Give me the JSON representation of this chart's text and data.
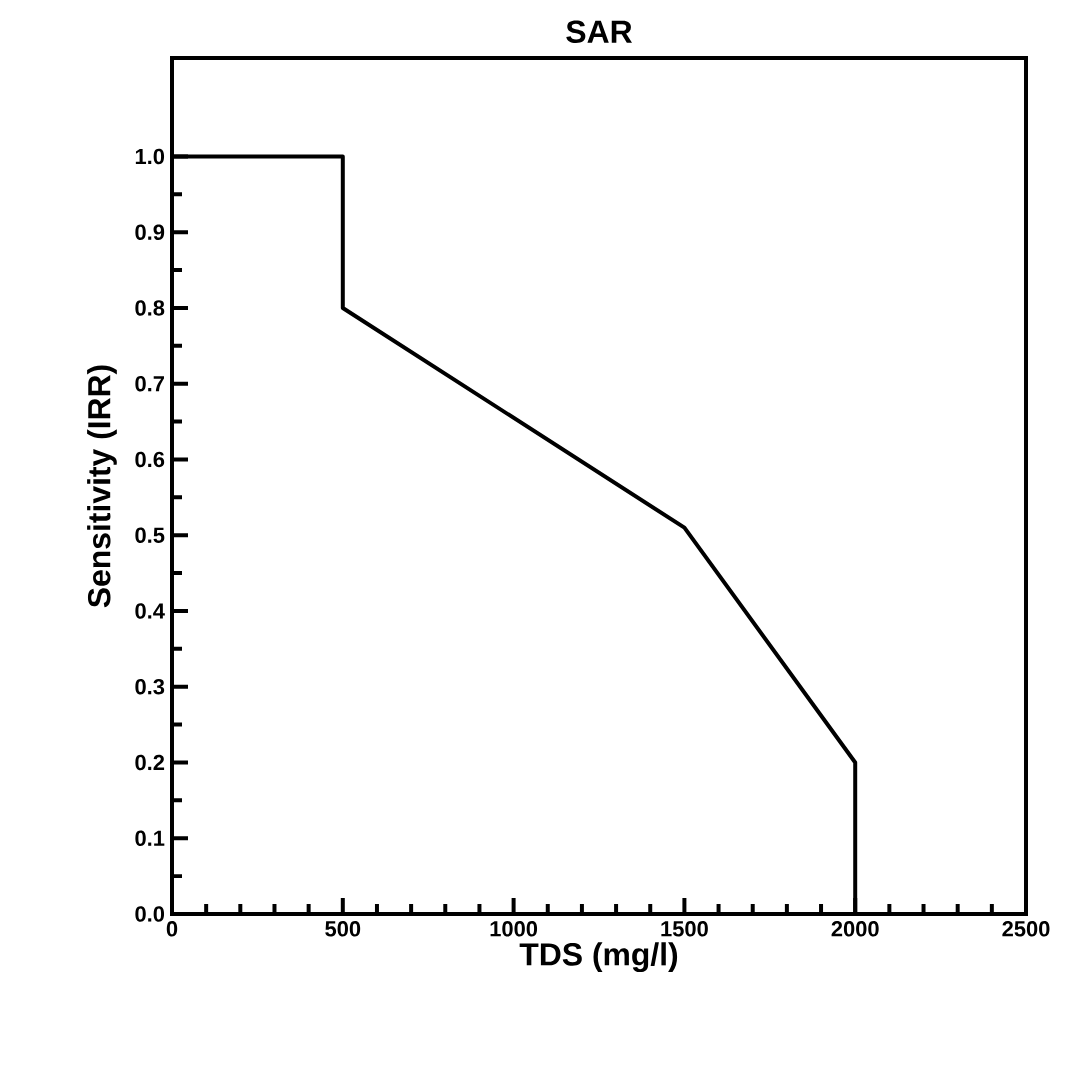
{
  "chart_data": {
    "type": "line",
    "title": "SAR",
    "xlabel": "TDS (mg/l)",
    "ylabel": "Sensitivity (IRR)",
    "x": [
      0,
      500,
      500,
      1500,
      2000,
      2000
    ],
    "series": [
      {
        "color": "#000000",
        "values": [
          1.0,
          1.0,
          0.8,
          0.51,
          0.2,
          0.0
        ]
      }
    ],
    "xlim": [
      0,
      2500
    ],
    "xticks": [
      0,
      500,
      1000,
      1500,
      2000,
      2500
    ],
    "ylim": [
      0,
      1.13
    ],
    "yticks": [
      {
        "value": 0,
        "label": "0.0"
      },
      0.1,
      0.2,
      0.3,
      0.4,
      0.5,
      0.6,
      0.7,
      0.8,
      0.9,
      {
        "value": 1,
        "label": "1.0"
      }
    ],
    "grid": false,
    "marker": "none",
    "line_style": "solid"
  }
}
